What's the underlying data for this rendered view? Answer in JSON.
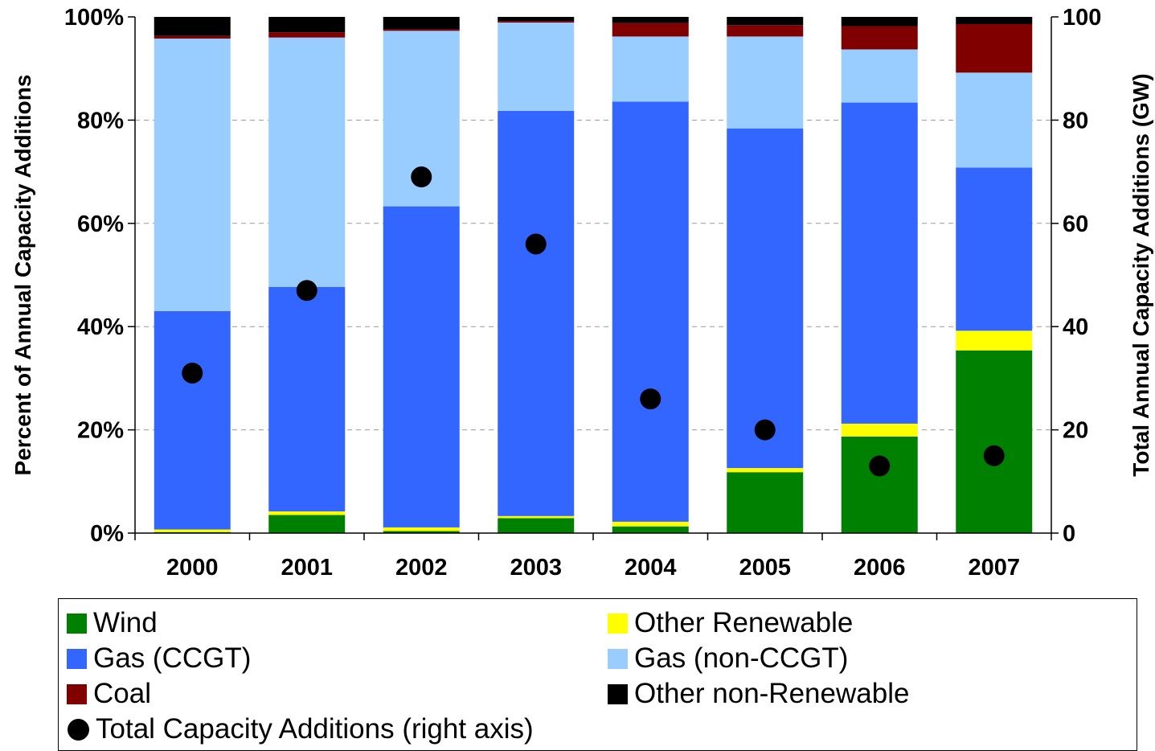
{
  "chart_data": {
    "type": "bar",
    "stacked": true,
    "categories": [
      "2000",
      "2001",
      "2002",
      "2003",
      "2004",
      "2005",
      "2006",
      "2007"
    ],
    "ylabel": "Percent of Annual Capacity Additions",
    "ylabel_right": "Total Annual Capacity Additions (GW)",
    "ylim": [
      0,
      100
    ],
    "ylim_right": [
      0,
      100
    ],
    "yticks": [
      "0%",
      "20%",
      "40%",
      "60%",
      "80%",
      "100%"
    ],
    "yticks_right": [
      "0",
      "20",
      "40",
      "60",
      "80",
      "100"
    ],
    "grid": true,
    "legend_position": "bottom",
    "series": [
      {
        "name": "Wind",
        "color": "#008000",
        "values": [
          0.2,
          3.5,
          0.4,
          2.9,
          1.3,
          11.8,
          18.7,
          35.4
        ]
      },
      {
        "name": "Other Renewable",
        "color": "#ffff00",
        "values": [
          0.5,
          0.7,
          0.7,
          0.4,
          0.9,
          0.8,
          2.5,
          3.8
        ]
      },
      {
        "name": "Gas (CCGT)",
        "color": "#3366ff",
        "values": [
          42.3,
          43.5,
          62.2,
          78.5,
          81.4,
          65.8,
          62.2,
          31.6
        ]
      },
      {
        "name": "Gas (non-CCGT)",
        "color": "#99ccff",
        "values": [
          52.8,
          48.3,
          34.0,
          17.1,
          12.6,
          17.8,
          10.3,
          18.4
        ]
      },
      {
        "name": "Coal",
        "color": "#800000",
        "values": [
          0.5,
          1.0,
          0.3,
          0.3,
          2.6,
          2.2,
          4.5,
          9.4
        ]
      },
      {
        "name": "Other non-Renewable",
        "color": "#000000",
        "values": [
          3.7,
          3.0,
          2.4,
          0.8,
          1.2,
          1.6,
          1.8,
          1.4
        ]
      }
    ],
    "line_series": {
      "name": "Total Capacity Additions (right axis)",
      "axis": "right",
      "marker": "circle",
      "color": "#000000",
      "values": [
        31,
        47,
        69,
        56,
        26,
        20,
        13,
        15
      ]
    }
  }
}
